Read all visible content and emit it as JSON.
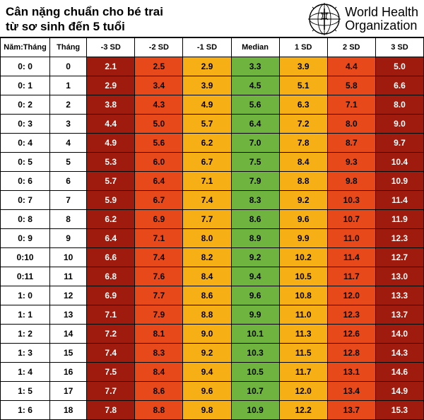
{
  "header": {
    "title_line1": "Cân nặng chuẩn cho bé trai",
    "title_line2": "từ sơ sinh đến 5 tuổi",
    "org_line1": "World Health",
    "org_line2": "Organization"
  },
  "table": {
    "columns": [
      "Năm:Tháng",
      "Tháng",
      "-3 SD",
      "-2 SD",
      "-1 SD",
      "Median",
      "1 SD",
      "2 SD",
      "3 SD"
    ],
    "sd_colors": {
      "-3 SD": "#9e1b0e",
      "-2 SD": "#e8491b",
      "-1 SD": "#f6b016",
      "Median": "#6eb43f",
      "1 SD": "#f6b016",
      "2 SD": "#e8491b",
      "3 SD": "#9e1b0e"
    },
    "sd_text_colors": {
      "-3 SD": "#ffffff",
      "-2 SD": "#000000",
      "-1 SD": "#000000",
      "Median": "#000000",
      "1 SD": "#000000",
      "2 SD": "#000000",
      "3 SD": "#ffffff"
    },
    "rows": [
      {
        "ym": "0: 0",
        "m": "0",
        "v": [
          "2.1",
          "2.5",
          "2.9",
          "3.3",
          "3.9",
          "4.4",
          "5.0"
        ]
      },
      {
        "ym": "0: 1",
        "m": "1",
        "v": [
          "2.9",
          "3.4",
          "3.9",
          "4.5",
          "5.1",
          "5.8",
          "6.6"
        ]
      },
      {
        "ym": "0: 2",
        "m": "2",
        "v": [
          "3.8",
          "4.3",
          "4.9",
          "5.6",
          "6.3",
          "7.1",
          "8.0"
        ]
      },
      {
        "ym": "0: 3",
        "m": "3",
        "v": [
          "4.4",
          "5.0",
          "5.7",
          "6.4",
          "7.2",
          "8.0",
          "9.0"
        ]
      },
      {
        "ym": "0: 4",
        "m": "4",
        "v": [
          "4.9",
          "5.6",
          "6.2",
          "7.0",
          "7.8",
          "8.7",
          "9.7"
        ]
      },
      {
        "ym": "0: 5",
        "m": "5",
        "v": [
          "5.3",
          "6.0",
          "6.7",
          "7.5",
          "8.4",
          "9.3",
          "10.4"
        ]
      },
      {
        "ym": "0: 6",
        "m": "6",
        "v": [
          "5.7",
          "6.4",
          "7.1",
          "7.9",
          "8.8",
          "9.8",
          "10.9"
        ]
      },
      {
        "ym": "0: 7",
        "m": "7",
        "v": [
          "5.9",
          "6.7",
          "7.4",
          "8.3",
          "9.2",
          "10.3",
          "11.4"
        ]
      },
      {
        "ym": "0: 8",
        "m": "8",
        "v": [
          "6.2",
          "6.9",
          "7.7",
          "8.6",
          "9.6",
          "10.7",
          "11.9"
        ]
      },
      {
        "ym": "0: 9",
        "m": "9",
        "v": [
          "6.4",
          "7.1",
          "8.0",
          "8.9",
          "9.9",
          "11.0",
          "12.3"
        ]
      },
      {
        "ym": "0:10",
        "m": "10",
        "v": [
          "6.6",
          "7.4",
          "8.2",
          "9.2",
          "10.2",
          "11.4",
          "12.7"
        ]
      },
      {
        "ym": "0:11",
        "m": "11",
        "v": [
          "6.8",
          "7.6",
          "8.4",
          "9.4",
          "10.5",
          "11.7",
          "13.0"
        ]
      },
      {
        "ym": "1: 0",
        "m": "12",
        "v": [
          "6.9",
          "7.7",
          "8.6",
          "9.6",
          "10.8",
          "12.0",
          "13.3"
        ]
      },
      {
        "ym": "1: 1",
        "m": "13",
        "v": [
          "7.1",
          "7.9",
          "8.8",
          "9.9",
          "11.0",
          "12.3",
          "13.7"
        ]
      },
      {
        "ym": "1: 2",
        "m": "14",
        "v": [
          "7.2",
          "8.1",
          "9.0",
          "10.1",
          "11.3",
          "12.6",
          "14.0"
        ]
      },
      {
        "ym": "1: 3",
        "m": "15",
        "v": [
          "7.4",
          "8.3",
          "9.2",
          "10.3",
          "11.5",
          "12.8",
          "14.3"
        ]
      },
      {
        "ym": "1: 4",
        "m": "16",
        "v": [
          "7.5",
          "8.4",
          "9.4",
          "10.5",
          "11.7",
          "13.1",
          "14.6"
        ]
      },
      {
        "ym": "1: 5",
        "m": "17",
        "v": [
          "7.7",
          "8.6",
          "9.6",
          "10.7",
          "12.0",
          "13.4",
          "14.9"
        ]
      },
      {
        "ym": "1: 6",
        "m": "18",
        "v": [
          "7.8",
          "8.8",
          "9.8",
          "10.9",
          "12.2",
          "13.7",
          "15.3"
        ]
      }
    ]
  }
}
